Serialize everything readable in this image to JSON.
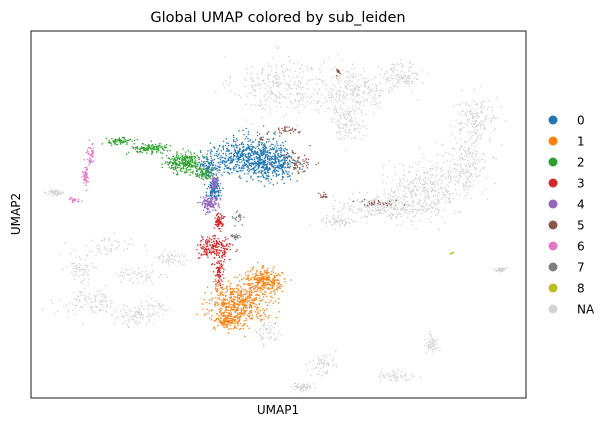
{
  "chart_data": {
    "type": "scatter",
    "title": "Global UMAP colored by sub_leiden",
    "xlabel": "UMAP1",
    "ylabel": "UMAP2",
    "x_ticks": false,
    "y_ticks": false,
    "grid": false,
    "legend_placement": "right",
    "legend": [
      {
        "label": "0",
        "color": "#1f77b4"
      },
      {
        "label": "1",
        "color": "#ff7f0e"
      },
      {
        "label": "2",
        "color": "#2ca02c"
      },
      {
        "label": "3",
        "color": "#d62728"
      },
      {
        "label": "4",
        "color": "#9467bd"
      },
      {
        "label": "5",
        "color": "#8c564b"
      },
      {
        "label": "6",
        "color": "#e377c2"
      },
      {
        "label": "7",
        "color": "#7f7f7f"
      },
      {
        "label": "8",
        "color": "#bcbd22"
      },
      {
        "label": "NA",
        "color": "#d3d3d3"
      }
    ],
    "series": [
      {
        "name": "NA",
        "color": "#d3d3d3",
        "n": 2600,
        "regions": [
          {
            "cx": 0.5,
            "cy": 0.85,
            "rx": 0.1,
            "ry": 0.09,
            "w": 5
          },
          {
            "cx": 0.65,
            "cy": 0.84,
            "rx": 0.1,
            "ry": 0.07,
            "w": 5
          },
          {
            "cx": 0.64,
            "cy": 0.75,
            "rx": 0.04,
            "ry": 0.05,
            "w": 2
          },
          {
            "cx": 0.75,
            "cy": 0.88,
            "rx": 0.04,
            "ry": 0.04,
            "w": 2
          },
          {
            "cx": 0.9,
            "cy": 0.76,
            "rx": 0.05,
            "ry": 0.07,
            "w": 3
          },
          {
            "cx": 0.72,
            "cy": 0.52,
            "rx": 0.11,
            "ry": 0.04,
            "w": 5
          },
          {
            "cx": 0.8,
            "cy": 0.57,
            "rx": 0.1,
            "ry": 0.08,
            "w": 6
          },
          {
            "cx": 0.88,
            "cy": 0.64,
            "rx": 0.05,
            "ry": 0.08,
            "w": 3
          },
          {
            "cx": 0.62,
            "cy": 0.48,
            "rx": 0.04,
            "ry": 0.02,
            "w": 1
          },
          {
            "cx": 0.28,
            "cy": 0.38,
            "rx": 0.04,
            "ry": 0.025,
            "w": 1
          },
          {
            "cx": 0.22,
            "cy": 0.33,
            "rx": 0.06,
            "ry": 0.03,
            "w": 1
          },
          {
            "cx": 0.24,
            "cy": 0.24,
            "rx": 0.05,
            "ry": 0.04,
            "w": 1
          },
          {
            "cx": 0.2,
            "cy": 0.22,
            "rx": 0.04,
            "ry": 0.03,
            "w": 1
          },
          {
            "cx": 0.12,
            "cy": 0.26,
            "rx": 0.07,
            "ry": 0.04,
            "w": 2
          },
          {
            "cx": 0.1,
            "cy": 0.35,
            "rx": 0.03,
            "ry": 0.04,
            "w": 1
          },
          {
            "cx": 0.15,
            "cy": 0.41,
            "rx": 0.08,
            "ry": 0.03,
            "w": 1
          },
          {
            "cx": 0.05,
            "cy": 0.56,
            "rx": 0.02,
            "ry": 0.01,
            "w": 1
          },
          {
            "cx": 0.48,
            "cy": 0.18,
            "rx": 0.025,
            "ry": 0.04,
            "w": 1
          },
          {
            "cx": 0.59,
            "cy": 0.09,
            "rx": 0.03,
            "ry": 0.03,
            "w": 1
          },
          {
            "cx": 0.73,
            "cy": 0.06,
            "rx": 0.04,
            "ry": 0.015,
            "w": 1
          },
          {
            "cx": 0.81,
            "cy": 0.15,
            "rx": 0.015,
            "ry": 0.03,
            "w": 1
          },
          {
            "cx": 0.55,
            "cy": 0.03,
            "rx": 0.02,
            "ry": 0.012,
            "w": 1
          },
          {
            "cx": 0.95,
            "cy": 0.35,
            "rx": 0.01,
            "ry": 0.006,
            "w": 1
          }
        ]
      },
      {
        "name": "0",
        "color": "#1f77b4",
        "n": 1100,
        "regions": [
          {
            "cx": 0.43,
            "cy": 0.66,
            "rx": 0.07,
            "ry": 0.06,
            "w": 4
          },
          {
            "cx": 0.49,
            "cy": 0.64,
            "rx": 0.05,
            "ry": 0.05,
            "w": 3
          },
          {
            "cx": 0.36,
            "cy": 0.63,
            "rx": 0.03,
            "ry": 0.03,
            "w": 1
          },
          {
            "cx": 0.37,
            "cy": 0.57,
            "rx": 0.015,
            "ry": 0.03,
            "w": 1
          }
        ]
      },
      {
        "name": "1",
        "color": "#ff7f0e",
        "n": 900,
        "regions": [
          {
            "cx": 0.42,
            "cy": 0.26,
            "rx": 0.07,
            "ry": 0.06,
            "w": 4
          },
          {
            "cx": 0.47,
            "cy": 0.32,
            "rx": 0.04,
            "ry": 0.035,
            "w": 2
          },
          {
            "cx": 0.4,
            "cy": 0.21,
            "rx": 0.03,
            "ry": 0.025,
            "w": 1
          }
        ]
      },
      {
        "name": "2",
        "color": "#2ca02c",
        "n": 520,
        "regions": [
          {
            "cx": 0.31,
            "cy": 0.64,
            "rx": 0.04,
            "ry": 0.03,
            "w": 4
          },
          {
            "cx": 0.24,
            "cy": 0.68,
            "rx": 0.04,
            "ry": 0.015,
            "w": 2
          },
          {
            "cx": 0.18,
            "cy": 0.7,
            "rx": 0.03,
            "ry": 0.01,
            "w": 1
          },
          {
            "cx": 0.35,
            "cy": 0.61,
            "rx": 0.02,
            "ry": 0.02,
            "w": 1
          }
        ]
      },
      {
        "name": "3",
        "color": "#d62728",
        "n": 330,
        "regions": [
          {
            "cx": 0.37,
            "cy": 0.41,
            "rx": 0.035,
            "ry": 0.035,
            "w": 3
          },
          {
            "cx": 0.38,
            "cy": 0.34,
            "rx": 0.012,
            "ry": 0.04,
            "w": 1
          },
          {
            "cx": 0.38,
            "cy": 0.48,
            "rx": 0.01,
            "ry": 0.03,
            "w": 1
          }
        ]
      },
      {
        "name": "4",
        "color": "#9467bd",
        "n": 180,
        "regions": [
          {
            "cx": 0.36,
            "cy": 0.53,
            "rx": 0.02,
            "ry": 0.025,
            "w": 2
          },
          {
            "cx": 0.37,
            "cy": 0.58,
            "rx": 0.01,
            "ry": 0.03,
            "w": 1
          }
        ]
      },
      {
        "name": "5",
        "color": "#8c564b",
        "n": 170,
        "regions": [
          {
            "cx": 0.54,
            "cy": 0.64,
            "rx": 0.035,
            "ry": 0.03,
            "w": 4
          },
          {
            "cx": 0.52,
            "cy": 0.73,
            "rx": 0.03,
            "ry": 0.012,
            "w": 2
          },
          {
            "cx": 0.47,
            "cy": 0.71,
            "rx": 0.02,
            "ry": 0.02,
            "w": 1
          },
          {
            "cx": 0.62,
            "cy": 0.89,
            "rx": 0.005,
            "ry": 0.008,
            "w": 1
          },
          {
            "cx": 0.7,
            "cy": 0.53,
            "rx": 0.05,
            "ry": 0.01,
            "w": 2
          },
          {
            "cx": 0.59,
            "cy": 0.55,
            "rx": 0.01,
            "ry": 0.01,
            "w": 1
          }
        ]
      },
      {
        "name": "6",
        "color": "#e377c2",
        "n": 110,
        "regions": [
          {
            "cx": 0.12,
            "cy": 0.66,
            "rx": 0.01,
            "ry": 0.03,
            "w": 2
          },
          {
            "cx": 0.11,
            "cy": 0.6,
            "rx": 0.006,
            "ry": 0.03,
            "w": 2
          },
          {
            "cx": 0.085,
            "cy": 0.54,
            "rx": 0.015,
            "ry": 0.008,
            "w": 1
          }
        ]
      },
      {
        "name": "7",
        "color": "#7f7f7f",
        "n": 45,
        "regions": [
          {
            "cx": 0.42,
            "cy": 0.49,
            "rx": 0.01,
            "ry": 0.03,
            "w": 1
          },
          {
            "cx": 0.41,
            "cy": 0.44,
            "rx": 0.012,
            "ry": 0.01,
            "w": 1
          }
        ]
      },
      {
        "name": "8",
        "color": "#bcbd22",
        "n": 6,
        "regions": [
          {
            "cx": 0.85,
            "cy": 0.395,
            "rx": 0.005,
            "ry": 0.004,
            "w": 1
          }
        ]
      }
    ]
  }
}
